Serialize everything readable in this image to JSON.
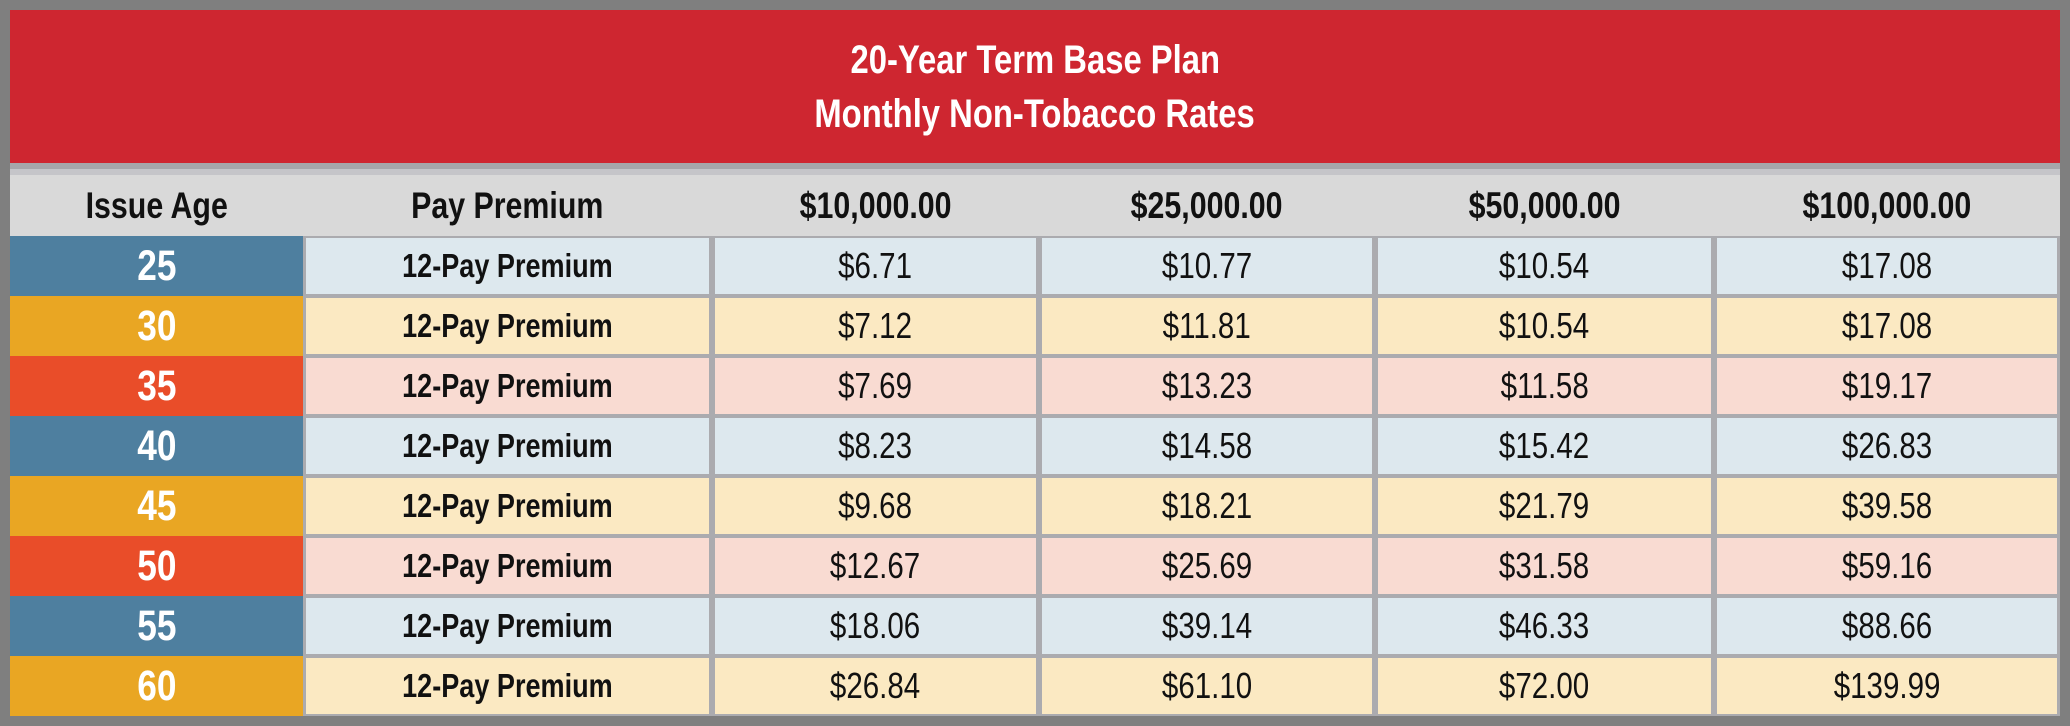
{
  "title": {
    "line1": "20-Year Term Base Plan",
    "line2": "Monthly Non-Tobacco Rates"
  },
  "columns": [
    "Issue Age",
    "Pay Premium",
    "$10,000.00",
    "$25,000.00",
    "$50,000.00",
    "$100,000.00"
  ],
  "rows": [
    {
      "age": "25",
      "pay": "12-Pay Premium",
      "values": [
        "$6.71",
        "$10.77",
        "$10.54",
        "$17.08"
      ]
    },
    {
      "age": "30",
      "pay": "12-Pay Premium",
      "values": [
        "$7.12",
        "$11.81",
        "$10.54",
        "$17.08"
      ]
    },
    {
      "age": "35",
      "pay": "12-Pay Premium",
      "values": [
        "$7.69",
        "$13.23",
        "$11.58",
        "$19.17"
      ]
    },
    {
      "age": "40",
      "pay": "12-Pay Premium",
      "values": [
        "$8.23",
        "$14.58",
        "$15.42",
        "$26.83"
      ]
    },
    {
      "age": "45",
      "pay": "12-Pay Premium",
      "values": [
        "$9.68",
        "$18.21",
        "$21.79",
        "$39.58"
      ]
    },
    {
      "age": "50",
      "pay": "12-Pay Premium",
      "values": [
        "$12.67",
        "$25.69",
        "$31.58",
        "$59.16"
      ]
    },
    {
      "age": "55",
      "pay": "12-Pay Premium",
      "values": [
        "$18.06",
        "$39.14",
        "$46.33",
        "$88.66"
      ]
    },
    {
      "age": "60",
      "pay": "12-Pay Premium",
      "values": [
        "$26.84",
        "$61.10",
        "$72.00",
        "$139.99"
      ]
    }
  ],
  "colors": {
    "banner-red": "#ce2630",
    "border-gray": "#7f7f7f",
    "grid-gray": "#ababaf",
    "header-bg": "#d9d9d9",
    "sep-dark": "#a6a6aa",
    "sep-light": "#c5c5c9",
    "age-blue": "#4e7f9f",
    "age-gold": "#e9a623",
    "age-orange": "#e94d29",
    "cell-blue": "#dde8ee",
    "cell-gold": "#fbe9c2",
    "cell-pink": "#f9dbd2",
    "text-dark": "#111111",
    "text-white": "#ffffff"
  },
  "chart_data": {
    "type": "table",
    "title": "20-Year Term Base Plan Monthly Non-Tobacco Rates",
    "categories": [
      "$10,000.00",
      "$25,000.00",
      "$50,000.00",
      "$100,000.00"
    ],
    "series": [
      {
        "name": "Issue Age 25 12-Pay Premium",
        "values": [
          6.71,
          10.77,
          10.54,
          17.08
        ]
      },
      {
        "name": "Issue Age 30 12-Pay Premium",
        "values": [
          7.12,
          11.81,
          10.54,
          17.08
        ]
      },
      {
        "name": "Issue Age 35 12-Pay Premium",
        "values": [
          7.69,
          13.23,
          11.58,
          19.17
        ]
      },
      {
        "name": "Issue Age 40 12-Pay Premium",
        "values": [
          8.23,
          14.58,
          15.42,
          26.83
        ]
      },
      {
        "name": "Issue Age 45 12-Pay Premium",
        "values": [
          9.68,
          18.21,
          21.79,
          39.58
        ]
      },
      {
        "name": "Issue Age 50 12-Pay Premium",
        "values": [
          12.67,
          25.69,
          31.58,
          59.16
        ]
      },
      {
        "name": "Issue Age 55 12-Pay Premium",
        "values": [
          18.06,
          39.14,
          46.33,
          88.66
        ]
      },
      {
        "name": "Issue Age 60 12-Pay Premium",
        "values": [
          26.84,
          61.1,
          72.0,
          139.99
        ]
      }
    ]
  }
}
